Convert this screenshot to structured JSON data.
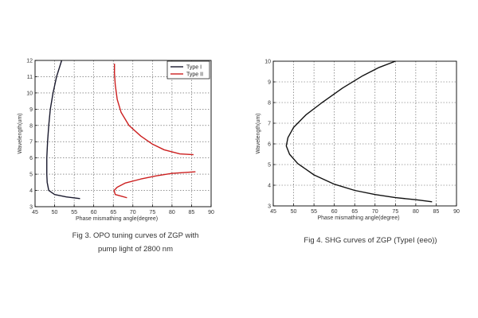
{
  "chart_data": [
    {
      "type": "line",
      "xlabel": "Phase mismathing angle(degree)",
      "ylabel": "Wavelength(um)",
      "xlim": [
        45,
        90
      ],
      "ylim": [
        3,
        12
      ],
      "xticks": [
        45,
        50,
        55,
        60,
        65,
        70,
        75,
        80,
        85,
        90
      ],
      "yticks": [
        3,
        4,
        5,
        6,
        7,
        8,
        9,
        10,
        11,
        12
      ],
      "grid": true,
      "legend": "top-right",
      "series": [
        {
          "name": "Type I",
          "color": "#1a1a2e",
          "points": [
            [
              56.5,
              3.5
            ],
            [
              53,
              3.6
            ],
            [
              50,
              3.75
            ],
            [
              48.5,
              4.0
            ],
            [
              48.1,
              4.5
            ],
            [
              48.0,
              5.0
            ],
            [
              48.0,
              6.0
            ],
            [
              48.2,
              7.0
            ],
            [
              48.5,
              8.0
            ],
            [
              48.9,
              9.0
            ],
            [
              49.6,
              10.0
            ],
            [
              50.5,
              11.0
            ],
            [
              51.8,
              12.0
            ]
          ]
        },
        {
          "name": "Type II",
          "color": "#cc1f1f",
          "points": [
            [
              68.5,
              3.55
            ],
            [
              67,
              3.65
            ],
            [
              65.5,
              3.75
            ],
            [
              65.2,
              4.0
            ],
            [
              66,
              4.2
            ],
            [
              68,
              4.45
            ],
            [
              72,
              4.7
            ],
            [
              76,
              4.9
            ],
            [
              80,
              5.05
            ],
            [
              86,
              5.15
            ],
            null,
            [
              85.5,
              6.2
            ],
            [
              82,
              6.25
            ],
            [
              78,
              6.5
            ],
            [
              75,
              6.85
            ],
            [
              72,
              7.35
            ],
            [
              69,
              8.0
            ],
            [
              67,
              8.8
            ],
            [
              66,
              9.6
            ],
            [
              65.5,
              10.5
            ],
            [
              65.3,
              11.2
            ],
            [
              65.3,
              11.8
            ]
          ]
        }
      ]
    },
    {
      "type": "line",
      "xlabel": "Phase mismathing angle(degree)",
      "ylabel": "Wavelength(um)",
      "xlim": [
        45,
        90
      ],
      "ylim": [
        3,
        10
      ],
      "xticks": [
        45,
        50,
        55,
        60,
        65,
        70,
        75,
        80,
        85,
        90
      ],
      "yticks": [
        3,
        4,
        5,
        6,
        7,
        8,
        9,
        10
      ],
      "grid": true,
      "series": [
        {
          "color": "#111111",
          "points": [
            [
              84,
              3.2
            ],
            [
              80,
              3.3
            ],
            [
              75,
              3.4
            ],
            [
              70,
              3.55
            ],
            [
              65,
              3.75
            ],
            [
              60,
              4.05
            ],
            [
              55,
              4.5
            ],
            [
              51,
              5.05
            ],
            [
              49,
              5.5
            ],
            [
              48.2,
              5.9
            ],
            [
              48.6,
              6.3
            ],
            [
              50,
              6.8
            ],
            [
              53,
              7.4
            ],
            [
              57,
              8.0
            ],
            [
              62,
              8.7
            ],
            [
              67,
              9.3
            ],
            [
              71,
              9.7
            ],
            [
              75,
              10.0
            ]
          ]
        }
      ]
    }
  ],
  "captions": {
    "fig3_line1": "Fig 3.   OPO tuning curves of ZGP with",
    "fig3_line2": "pump light of 2800 nm",
    "fig4": "Fig 4.   SHG curves of ZGP (TypeI (eeo))"
  }
}
